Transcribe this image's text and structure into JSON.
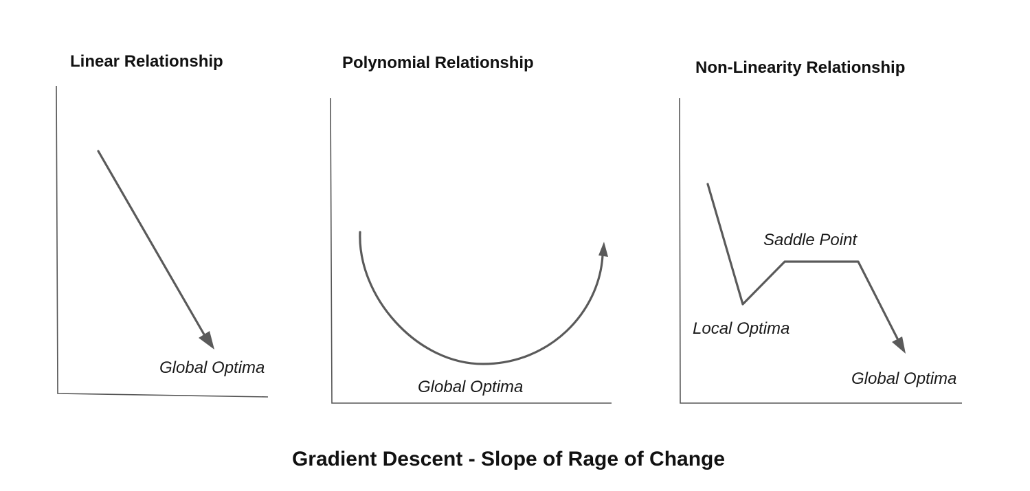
{
  "panels": [
    {
      "title": "Linear Relationship",
      "annotations": {
        "global": "Global Optima"
      }
    },
    {
      "title": "Polynomial Relationship",
      "annotations": {
        "global": "Global Optima"
      }
    },
    {
      "title": "Non-Linearity Relationship",
      "annotations": {
        "saddle": "Saddle Point",
        "local": "Local Optima",
        "global": "Global Optima"
      }
    }
  ],
  "caption": "Gradient Descent - Slope of Rage of Change"
}
